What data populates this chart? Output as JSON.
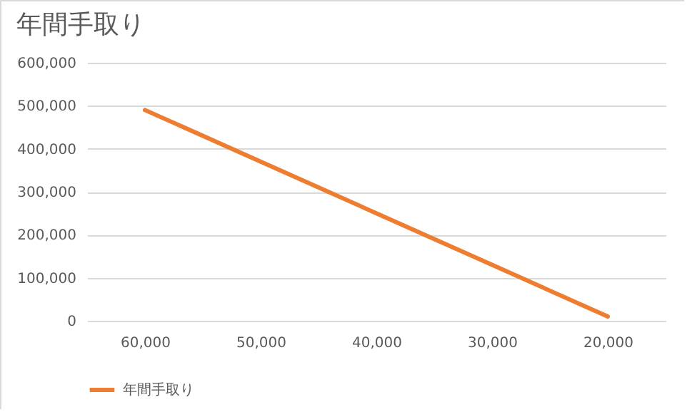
{
  "chart_data": {
    "type": "line",
    "title": "年間手取り",
    "categories": [
      "60,000",
      "50,000",
      "40,000",
      "30,000",
      "20,000"
    ],
    "series": [
      {
        "name": "年間手取り",
        "color": "#ed7d31",
        "values": [
          490000,
          370000,
          250000,
          130000,
          10000
        ]
      }
    ],
    "ylim": [
      0,
      600000
    ],
    "yticks": [
      0,
      {
        "value": 100000,
        "label": "100,000"
      },
      {
        "value": 200000,
        "label": "200,000"
      },
      {
        "value": 300000,
        "label": "300,000"
      },
      {
        "value": 400000,
        "label": "400,000"
      },
      {
        "value": 500000,
        "label": "500,000"
      },
      {
        "value": 600000,
        "label": "600,000"
      }
    ],
    "grid": "y",
    "legend": "bottom",
    "marker": "none",
    "line_style": "solid"
  }
}
